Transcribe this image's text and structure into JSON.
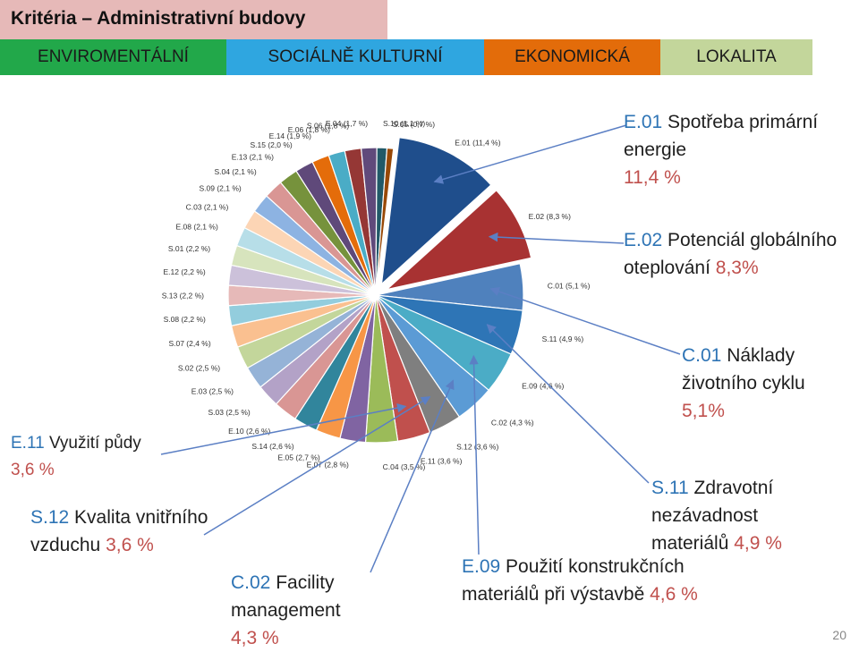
{
  "header": {
    "title": "Kritéria – Administrativní budovy",
    "categories": [
      {
        "label": "ENVIROMENTÁLNÍ",
        "color": "#22a84a"
      },
      {
        "label": "SOCIÁLNĚ KULTURNÍ",
        "color": "#2fa6e0"
      },
      {
        "label": "EKONOMICKÁ",
        "color": "#e36c0a"
      },
      {
        "label": "LOKALITA",
        "color": "#c3d69b"
      }
    ]
  },
  "chart_data": {
    "type": "pie",
    "slices": [
      {
        "label": "E.01 (11,4 %)",
        "value": 11.4,
        "color": "#1f4e8c",
        "exploded": true
      },
      {
        "label": "E.02 (8,3 %)",
        "value": 8.3,
        "color": "#a83232",
        "exploded": true
      },
      {
        "label": "C.01 (5,1 %)",
        "value": 5.1,
        "color": "#4f81bd"
      },
      {
        "label": "S.11 (4,9 %)",
        "value": 4.9,
        "color": "#2e75b6"
      },
      {
        "label": "E.09 (4,6 %)",
        "value": 4.6,
        "color": "#4bacc6"
      },
      {
        "label": "C.02 (4,3 %)",
        "value": 4.3,
        "color": "#5b9bd5"
      },
      {
        "label": "S.12 (3,6 %)",
        "value": 3.6,
        "color": "#7f7f7f"
      },
      {
        "label": "E.11 (3,6 %)",
        "value": 3.6,
        "color": "#c0504d"
      },
      {
        "label": "C.04 (3,5 %)",
        "value": 3.5,
        "color": "#9bbb59"
      },
      {
        "label": "E.07 (2,8 %)",
        "value": 2.8,
        "color": "#8064a2"
      },
      {
        "label": "E.05 (2,7 %)",
        "value": 2.7,
        "color": "#f79646"
      },
      {
        "label": "S.14 (2,6 %)",
        "value": 2.6,
        "color": "#31859c"
      },
      {
        "label": "E.10 (2,6 %)",
        "value": 2.6,
        "color": "#d99694"
      },
      {
        "label": "S.03 (2,5 %)",
        "value": 2.5,
        "color": "#b3a2c7"
      },
      {
        "label": "E.03 (2,5 %)",
        "value": 2.5,
        "color": "#95b3d7"
      },
      {
        "label": "S.02 (2,5 %)",
        "value": 2.5,
        "color": "#c3d69b"
      },
      {
        "label": "S.07 (2,4 %)",
        "value": 2.4,
        "color": "#fac090"
      },
      {
        "label": "S.08 (2,2 %)",
        "value": 2.2,
        "color": "#93cddd"
      },
      {
        "label": "S.13 (2,2 %)",
        "value": 2.2,
        "color": "#e6b9b8"
      },
      {
        "label": "E.12 (2,2 %)",
        "value": 2.2,
        "color": "#ccc1da"
      },
      {
        "label": "S.01 (2,2 %)",
        "value": 2.2,
        "color": "#d7e4bd"
      },
      {
        "label": "E.08 (2,1 %)",
        "value": 2.1,
        "color": "#b7dee8"
      },
      {
        "label": "C.03 (2,1 %)",
        "value": 2.1,
        "color": "#fcd5b5"
      },
      {
        "label": "S.09 (2,1 %)",
        "value": 2.1,
        "color": "#8db3e2"
      },
      {
        "label": "S.04 (2,1 %)",
        "value": 2.1,
        "color": "#d99694"
      },
      {
        "label": "E.13 (2,1 %)",
        "value": 2.1,
        "color": "#76923c"
      },
      {
        "label": "S.15 (2,0 %)",
        "value": 2.0,
        "color": "#5f497a"
      },
      {
        "label": "E.14 (1,9 %)",
        "value": 1.9,
        "color": "#e46c0a"
      },
      {
        "label": "E.06 (1,8 %)",
        "value": 1.8,
        "color": "#4aacc6"
      },
      {
        "label": "S.06 (1,8 %)",
        "value": 1.8,
        "color": "#953735"
      },
      {
        "label": "E.04 (1,7 %)",
        "value": 1.7,
        "color": "#604a7b"
      },
      {
        "label": "S.10 (1,1 %)",
        "value": 1.1,
        "color": "#215968"
      },
      {
        "label": "S.05 (0,7 %)",
        "value": 0.7,
        "color": "#984806"
      }
    ]
  },
  "callouts": {
    "e01": {
      "code": "E.01",
      "text": "Spotřeba primární energie",
      "value": "11,4 %"
    },
    "e02": {
      "code": "E.02",
      "text": "Potenciál globálního oteplování",
      "value": "8,3%"
    },
    "c01": {
      "code": "C.01",
      "text": "Náklady životního cyklu",
      "value": "5,1%"
    },
    "s11": {
      "code": "S.11",
      "text": "Zdravotní nezávadnost materiálů",
      "value": "4,9 %"
    },
    "e09": {
      "code": "E.09",
      "text": "Použití konstrukčních materiálů při výstavbě",
      "value": "4,6 %"
    },
    "c02": {
      "code": "C.02",
      "text": "Facility management",
      "value": "4,3 %"
    },
    "e11": {
      "code": "E.11",
      "text": "Využití půdy",
      "value": "3,6 %"
    },
    "s12": {
      "code": "S.12",
      "text": "Kvalita vnitřního vzduchu",
      "value": "3,6 %"
    }
  },
  "page_number": "20"
}
